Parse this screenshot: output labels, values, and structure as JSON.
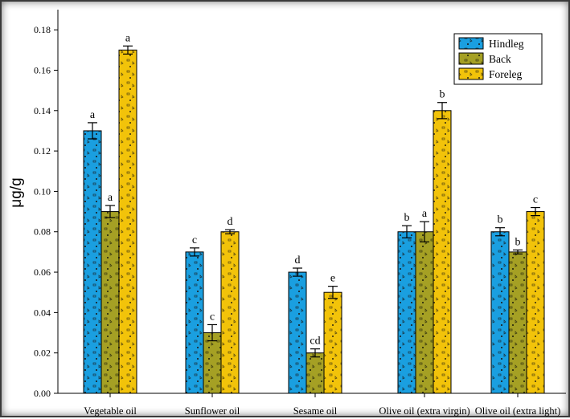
{
  "chart_data": {
    "type": "bar",
    "title": "",
    "xlabel": "",
    "ylabel": "μg/g",
    "ylim": [
      0,
      0.19
    ],
    "yticks": [
      "0.00",
      "0.02",
      "0.04",
      "0.06",
      "0.08",
      "0.10",
      "0.12",
      "0.14",
      "0.16",
      "0.18"
    ],
    "grid": false,
    "legend_position": "top-right",
    "categories": [
      "Vegetable oil",
      "Sunflower oil",
      "Sesame oil",
      "Olive oil (extra virgin)",
      "Olive oil (extra light)"
    ],
    "series": [
      {
        "name": "Hindleg",
        "color": "#1a9fe0",
        "values": [
          0.13,
          0.07,
          0.06,
          0.08,
          0.08
        ],
        "errors": [
          0.004,
          0.002,
          0.002,
          0.003,
          0.002
        ],
        "labels": [
          "a",
          "c",
          "d",
          "b",
          "b"
        ]
      },
      {
        "name": "Back",
        "color": "#a5a024",
        "values": [
          0.09,
          0.03,
          0.02,
          0.08,
          0.07
        ],
        "errors": [
          0.003,
          0.004,
          0.002,
          0.005,
          0.001
        ],
        "labels": [
          "a",
          "c",
          "cd",
          "a",
          "b"
        ]
      },
      {
        "name": "Foreleg",
        "color": "#f2c30a",
        "values": [
          0.17,
          0.08,
          0.05,
          0.14,
          0.09
        ],
        "errors": [
          0.002,
          0.001,
          0.003,
          0.004,
          0.002
        ],
        "labels": [
          "a",
          "d",
          "e",
          "b",
          "c"
        ]
      }
    ]
  }
}
